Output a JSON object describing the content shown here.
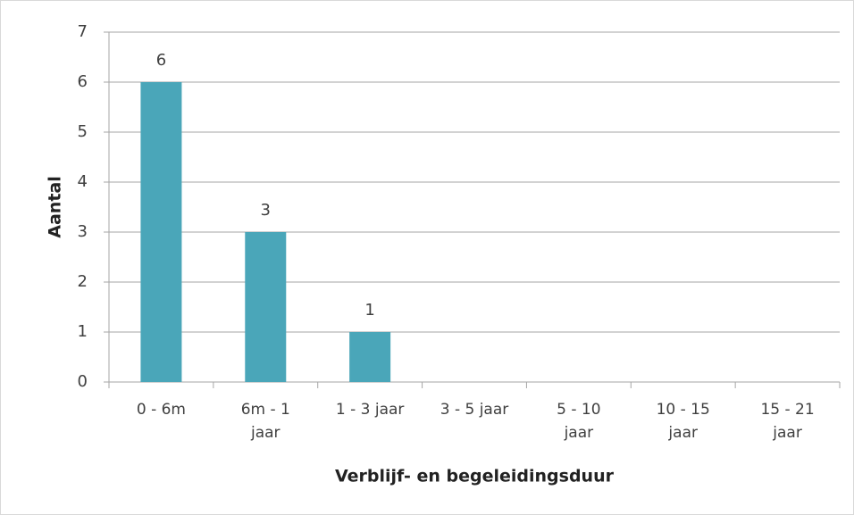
{
  "chart_data": {
    "type": "bar",
    "categories": [
      "0 - 6m",
      "6m - 1 jaar",
      "1 - 3 jaar",
      "3 - 5 jaar",
      "5 - 10 jaar",
      "10 - 15 jaar",
      "15 - 21 jaar"
    ],
    "values": [
      6,
      3,
      1,
      0,
      0,
      0,
      0
    ],
    "color": "#4aa6b9",
    "ylim": [
      0,
      7
    ],
    "yticks": [
      0,
      1,
      2,
      3,
      4,
      5,
      6,
      7
    ],
    "grid": true,
    "y_label": "Aantal",
    "x_label": "Verblijf- en begeleidingsduur"
  }
}
